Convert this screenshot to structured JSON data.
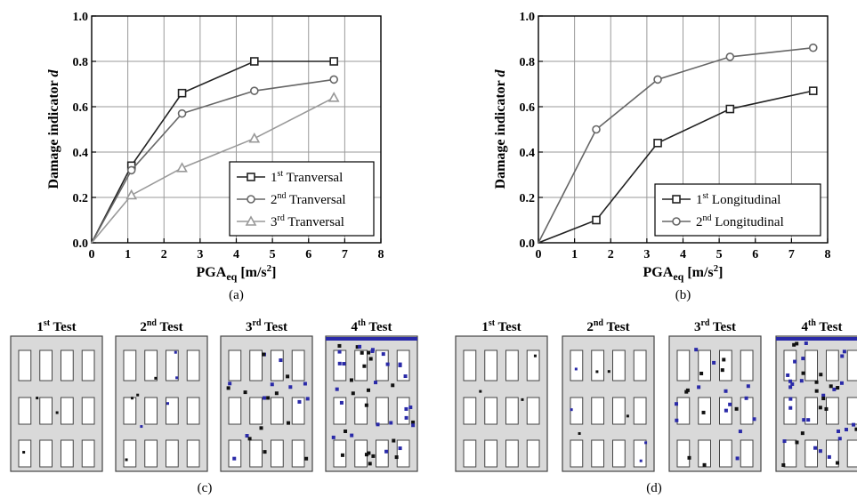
{
  "chart_data": [
    {
      "type": "line",
      "panel_label": "(a)",
      "xlabel_main": "PGA",
      "xlabel_sub": "eq",
      "xlabel_unit": "[m/s",
      "xlabel_exp": "2",
      "xlabel_close": "]",
      "ylabel": "Damage indicator d",
      "xlim": [
        0,
        8
      ],
      "ylim": [
        0,
        1.0
      ],
      "xticks": [
        "0",
        "1",
        "2",
        "3",
        "4",
        "5",
        "6",
        "7",
        "8"
      ],
      "yticks": [
        "0.0",
        "0.2",
        "0.4",
        "0.6",
        "0.8",
        "1.0"
      ],
      "grid": true,
      "legend_position": "bottom-right",
      "series": [
        {
          "name_base": "1",
          "name_sup": "st",
          "name_rest": " Tranversal",
          "marker": "square",
          "x": [
            1.1,
            2.5,
            4.5,
            6.7
          ],
          "y": [
            0.34,
            0.66,
            0.8,
            0.8
          ]
        },
        {
          "name_base": "2",
          "name_sup": "nd",
          "name_rest": " Tranversal",
          "marker": "circle",
          "x": [
            1.1,
            2.5,
            4.5,
            6.7
          ],
          "y": [
            0.32,
            0.57,
            0.67,
            0.72
          ]
        },
        {
          "name_base": "3",
          "name_sup": "rd",
          "name_rest": " Tranversal",
          "marker": "triangle",
          "x": [
            1.1,
            2.5,
            4.5,
            6.7
          ],
          "y": [
            0.21,
            0.33,
            0.46,
            0.64
          ]
        }
      ]
    },
    {
      "type": "line",
      "panel_label": "(b)",
      "xlabel_main": "PGA",
      "xlabel_sub": "eq",
      "xlabel_unit": "[m/s",
      "xlabel_exp": "2",
      "xlabel_close": "]",
      "ylabel": "Damage indicator d",
      "xlim": [
        0,
        8
      ],
      "ylim": [
        0,
        1.0
      ],
      "xticks": [
        "0",
        "1",
        "2",
        "3",
        "4",
        "5",
        "6",
        "7",
        "8"
      ],
      "yticks": [
        "0.0",
        "0.2",
        "0.4",
        "0.6",
        "0.8",
        "1.0"
      ],
      "grid": true,
      "legend_position": "bottom-right",
      "series": [
        {
          "name_base": "1",
          "name_sup": "st",
          "name_rest": " Longitudinal",
          "marker": "square",
          "x": [
            1.6,
            3.3,
            5.3,
            7.6
          ],
          "y": [
            0.1,
            0.44,
            0.59,
            0.67
          ]
        },
        {
          "name_base": "2",
          "name_sup": "nd",
          "name_rest": " Longitudinal",
          "marker": "circle",
          "x": [
            1.6,
            3.3,
            5.3,
            7.6
          ],
          "y": [
            0.5,
            0.72,
            0.82,
            0.86
          ]
        }
      ]
    }
  ],
  "tests_c": {
    "panel_label": "(c)",
    "titles": [
      {
        "base": "1",
        "sup": "st",
        "rest": " Test",
        "level": 0
      },
      {
        "base": "2",
        "sup": "nd",
        "rest": " Test",
        "level": 1
      },
      {
        "base": "3",
        "sup": "rd",
        "rest": " Test",
        "level": 2
      },
      {
        "base": "4",
        "sup": "th",
        "rest": " Test",
        "level": 3
      }
    ]
  },
  "tests_d": {
    "panel_label": "(d)",
    "titles": [
      {
        "base": "1",
        "sup": "st",
        "rest": " Test",
        "level": 0
      },
      {
        "base": "2",
        "sup": "nd",
        "rest": " Test",
        "level": 1
      },
      {
        "base": "3",
        "sup": "rd",
        "rest": " Test",
        "level": 2
      },
      {
        "base": "4",
        "sup": "th",
        "rest": " Test",
        "level": 3
      }
    ]
  },
  "colors": {
    "line_dark": "#222222",
    "line_mid": "#666666",
    "line_light": "#999999",
    "wall": "#d9d9d9",
    "crack_blue": "#2a2aa8",
    "crack_black": "#111111"
  }
}
